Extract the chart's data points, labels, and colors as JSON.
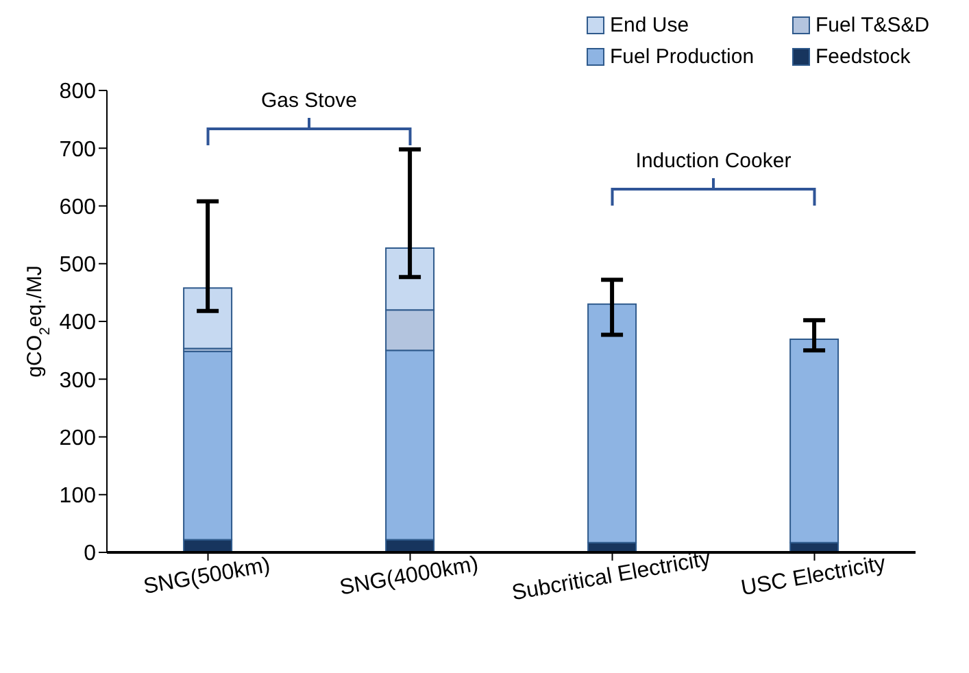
{
  "chart_data": {
    "type": "bar",
    "stacked": true,
    "ylabel": "gCO$_{2}$eq./MJ",
    "categories": [
      "SNG(500km)",
      "SNG(4000km)",
      "Subcritical Electricity",
      "USC Electricity"
    ],
    "series": [
      {
        "name": "Feedstock",
        "color": "#17355e",
        "values": [
          22,
          22,
          17,
          17
        ]
      },
      {
        "name": "Fuel Production",
        "color": "#8eb4e3",
        "values": [
          326,
          328,
          413,
          352
        ],
        "errors": [
          null,
          null,
          [
            377,
            472
          ],
          [
            350,
            402
          ]
        ]
      },
      {
        "name": "Fuel T&S&D",
        "color": "#b3c4de",
        "values": [
          5,
          70,
          0,
          0
        ]
      },
      {
        "name": "End Use",
        "color": "#c6d9f1",
        "values": [
          105,
          107,
          0,
          0
        ],
        "errors": [
          [
            418,
            608
          ],
          [
            477,
            698
          ],
          null,
          null
        ]
      }
    ],
    "ylim": [
      0,
      800
    ],
    "yticks": [
      0,
      100,
      200,
      300,
      400,
      500,
      600,
      700,
      800
    ],
    "grid": false,
    "legend": "top",
    "annotations": [
      "Gas Stove",
      "Induction Cooker"
    ]
  }
}
